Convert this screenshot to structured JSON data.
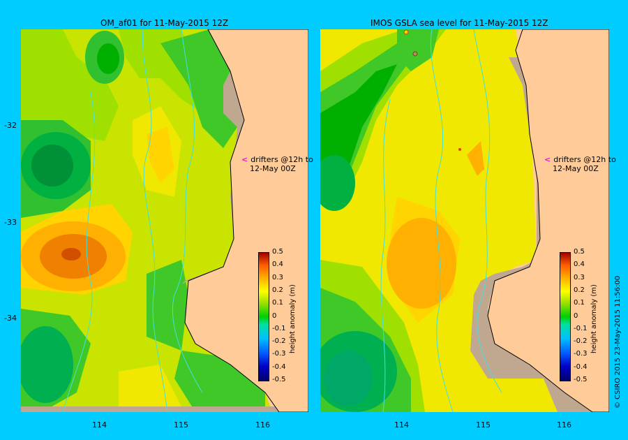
{
  "left_panel": {
    "title": "OM_af01  for 11-May-2015 12Z",
    "annotation_line1": "drifters @12h to",
    "annotation_line2": "12-May 00Z",
    "arrow_color": "#ff00ff"
  },
  "right_panel": {
    "title": "IMOS GSLA sea level  for 11-May-2015 12Z",
    "annotation_line1": "drifters @12h to",
    "annotation_line2": "12-May 00Z",
    "arrow_color": "#ff00ff"
  },
  "x_ticks": [
    "114",
    "115",
    "116"
  ],
  "y_ticks": [
    "-32",
    "-33",
    "-34"
  ],
  "colorbar": {
    "label": "height anomaly (m)",
    "ticks": [
      "0.5",
      "0.4",
      "0.3",
      "0.2",
      "0.1",
      "0",
      "-0.1",
      "-0.2",
      "-0.3",
      "-0.4",
      "-0.5"
    ]
  },
  "copyright": "© CSIRO 2015   23-May-2015 11:56:00",
  "colors": {
    "background": "#00ccff",
    "land": "#ffcc99",
    "coastline": "#000000",
    "shelf_mask": "#c0a890",
    "bathymetry_contour": "#40e0e0"
  }
}
